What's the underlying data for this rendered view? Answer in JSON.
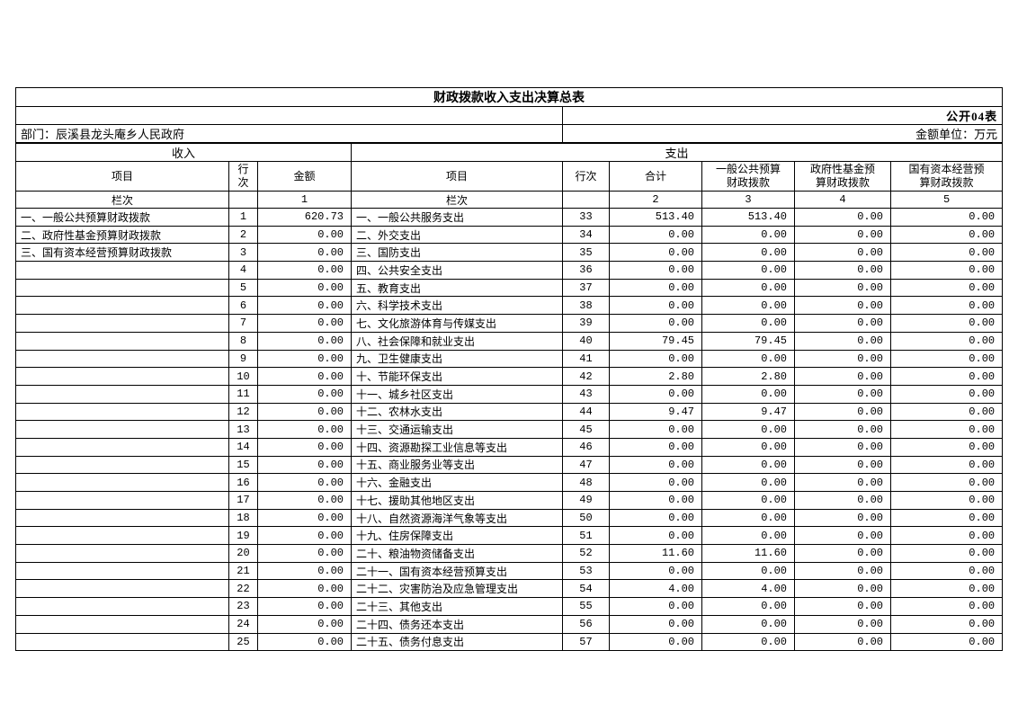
{
  "page": {
    "title": "财政拨款收入支出决算总表",
    "table_code": "公开04表",
    "department_label": "部门：辰溪县龙头庵乡人民政府",
    "unit_label": "金额单位：万元"
  },
  "header": {
    "income_section": "收入",
    "expenditure_section": "支出",
    "income_item": "项目",
    "income_line_no": "行\n次",
    "income_amount": "金额",
    "expense_item": "项目",
    "expense_line_no": "行次",
    "total": "合计",
    "general_public_budget": "一般公共预算\n财政拨款",
    "government_fund_budget": "政府性基金预\n算财政拨款",
    "state_capital_budget": "国有资本经营预\n算财政拨款",
    "lane_label_income": "栏次",
    "lane_label_expense": "栏次",
    "lane_numbers": {
      "amount": "1",
      "total": "2",
      "general": "3",
      "fund": "4",
      "capital": "5"
    }
  },
  "rows": [
    {
      "item_in": "一、一般公共预算财政拨款",
      "line_in": "1",
      "amt_in": "620.73",
      "item_ex": "一、一般公共服务支出",
      "line_ex": "33",
      "total": "513.40",
      "general": "513.40",
      "fund": "0.00",
      "capital": "0.00"
    },
    {
      "item_in": "二、政府性基金预算财政拨款",
      "line_in": "2",
      "amt_in": "0.00",
      "item_ex": "二、外交支出",
      "line_ex": "34",
      "total": "0.00",
      "general": "0.00",
      "fund": "0.00",
      "capital": "0.00"
    },
    {
      "item_in": "三、国有资本经营预算财政拨款",
      "line_in": "3",
      "amt_in": "0.00",
      "item_ex": "三、国防支出",
      "line_ex": "35",
      "total": "0.00",
      "general": "0.00",
      "fund": "0.00",
      "capital": "0.00"
    },
    {
      "item_in": "",
      "line_in": "4",
      "amt_in": "0.00",
      "item_ex": "四、公共安全支出",
      "line_ex": "36",
      "total": "0.00",
      "general": "0.00",
      "fund": "0.00",
      "capital": "0.00"
    },
    {
      "item_in": "",
      "line_in": "5",
      "amt_in": "0.00",
      "item_ex": "五、教育支出",
      "line_ex": "37",
      "total": "0.00",
      "general": "0.00",
      "fund": "0.00",
      "capital": "0.00"
    },
    {
      "item_in": "",
      "line_in": "6",
      "amt_in": "0.00",
      "item_ex": "六、科学技术支出",
      "line_ex": "38",
      "total": "0.00",
      "general": "0.00",
      "fund": "0.00",
      "capital": "0.00"
    },
    {
      "item_in": "",
      "line_in": "7",
      "amt_in": "0.00",
      "item_ex": "七、文化旅游体育与传媒支出",
      "line_ex": "39",
      "total": "0.00",
      "general": "0.00",
      "fund": "0.00",
      "capital": "0.00"
    },
    {
      "item_in": "",
      "line_in": "8",
      "amt_in": "0.00",
      "item_ex": "八、社会保障和就业支出",
      "line_ex": "40",
      "total": "79.45",
      "general": "79.45",
      "fund": "0.00",
      "capital": "0.00"
    },
    {
      "item_in": "",
      "line_in": "9",
      "amt_in": "0.00",
      "item_ex": "九、卫生健康支出",
      "line_ex": "41",
      "total": "0.00",
      "general": "0.00",
      "fund": "0.00",
      "capital": "0.00"
    },
    {
      "item_in": "",
      "line_in": "10",
      "amt_in": "0.00",
      "item_ex": "十、节能环保支出",
      "line_ex": "42",
      "total": "2.80",
      "general": "2.80",
      "fund": "0.00",
      "capital": "0.00"
    },
    {
      "item_in": "",
      "line_in": "11",
      "amt_in": "0.00",
      "item_ex": "十一、城乡社区支出",
      "line_ex": "43",
      "total": "0.00",
      "general": "0.00",
      "fund": "0.00",
      "capital": "0.00"
    },
    {
      "item_in": "",
      "line_in": "12",
      "amt_in": "0.00",
      "item_ex": "十二、农林水支出",
      "line_ex": "44",
      "total": "9.47",
      "general": "9.47",
      "fund": "0.00",
      "capital": "0.00"
    },
    {
      "item_in": "",
      "line_in": "13",
      "amt_in": "0.00",
      "item_ex": "十三、交通运输支出",
      "line_ex": "45",
      "total": "0.00",
      "general": "0.00",
      "fund": "0.00",
      "capital": "0.00"
    },
    {
      "item_in": "",
      "line_in": "14",
      "amt_in": "0.00",
      "item_ex": "十四、资源勘探工业信息等支出",
      "line_ex": "46",
      "total": "0.00",
      "general": "0.00",
      "fund": "0.00",
      "capital": "0.00"
    },
    {
      "item_in": "",
      "line_in": "15",
      "amt_in": "0.00",
      "item_ex": "十五、商业服务业等支出",
      "line_ex": "47",
      "total": "0.00",
      "general": "0.00",
      "fund": "0.00",
      "capital": "0.00"
    },
    {
      "item_in": "",
      "line_in": "16",
      "amt_in": "0.00",
      "item_ex": "十六、金融支出",
      "line_ex": "48",
      "total": "0.00",
      "general": "0.00",
      "fund": "0.00",
      "capital": "0.00"
    },
    {
      "item_in": "",
      "line_in": "17",
      "amt_in": "0.00",
      "item_ex": "十七、援助其他地区支出",
      "line_ex": "49",
      "total": "0.00",
      "general": "0.00",
      "fund": "0.00",
      "capital": "0.00"
    },
    {
      "item_in": "",
      "line_in": "18",
      "amt_in": "0.00",
      "item_ex": "十八、自然资源海洋气象等支出",
      "line_ex": "50",
      "total": "0.00",
      "general": "0.00",
      "fund": "0.00",
      "capital": "0.00"
    },
    {
      "item_in": "",
      "line_in": "19",
      "amt_in": "0.00",
      "item_ex": "十九、住房保障支出",
      "line_ex": "51",
      "total": "0.00",
      "general": "0.00",
      "fund": "0.00",
      "capital": "0.00"
    },
    {
      "item_in": "",
      "line_in": "20",
      "amt_in": "0.00",
      "item_ex": "二十、粮油物资储备支出",
      "line_ex": "52",
      "total": "11.60",
      "general": "11.60",
      "fund": "0.00",
      "capital": "0.00"
    },
    {
      "item_in": "",
      "line_in": "21",
      "amt_in": "0.00",
      "item_ex": "二十一、国有资本经营预算支出",
      "line_ex": "53",
      "total": "0.00",
      "general": "0.00",
      "fund": "0.00",
      "capital": "0.00"
    },
    {
      "item_in": "",
      "line_in": "22",
      "amt_in": "0.00",
      "item_ex": "二十二、灾害防治及应急管理支出",
      "line_ex": "54",
      "total": "4.00",
      "general": "4.00",
      "fund": "0.00",
      "capital": "0.00"
    },
    {
      "item_in": "",
      "line_in": "23",
      "amt_in": "0.00",
      "item_ex": "二十三、其他支出",
      "line_ex": "55",
      "total": "0.00",
      "general": "0.00",
      "fund": "0.00",
      "capital": "0.00"
    },
    {
      "item_in": "",
      "line_in": "24",
      "amt_in": "0.00",
      "item_ex": "二十四、债务还本支出",
      "line_ex": "56",
      "total": "0.00",
      "general": "0.00",
      "fund": "0.00",
      "capital": "0.00"
    },
    {
      "item_in": "",
      "line_in": "25",
      "amt_in": "0.00",
      "item_ex": "二十五、债务付息支出",
      "line_ex": "57",
      "total": "0.00",
      "general": "0.00",
      "fund": "0.00",
      "capital": "0.00"
    }
  ]
}
